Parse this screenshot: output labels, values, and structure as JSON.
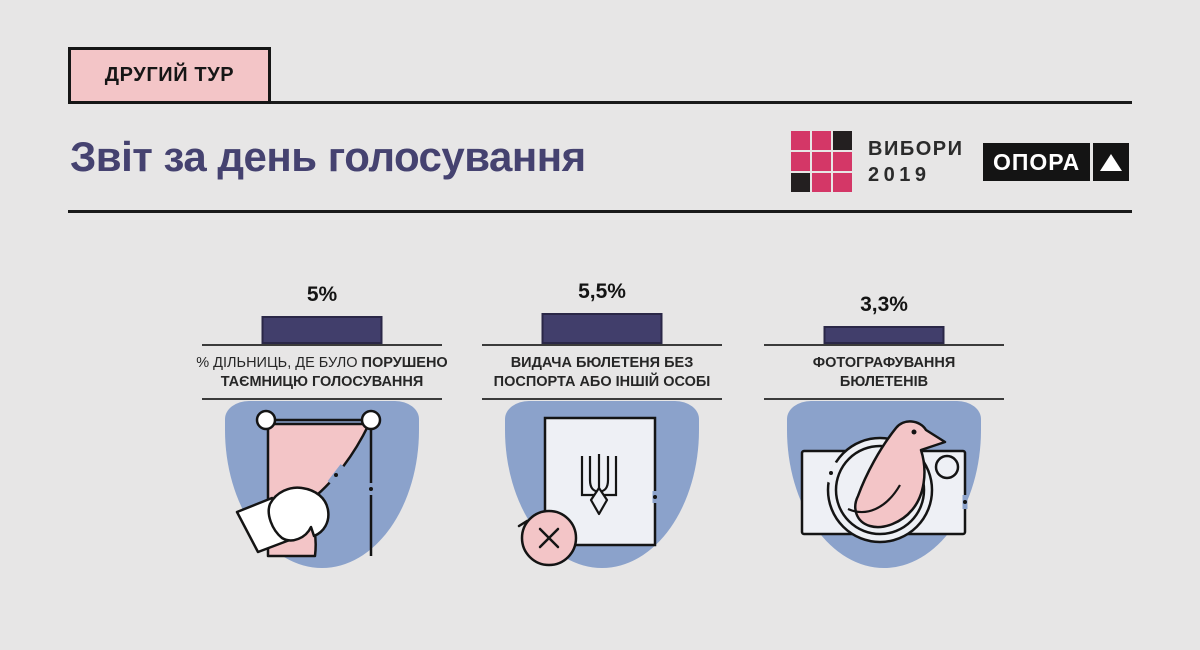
{
  "page": {
    "background": "#e7e6e6",
    "accent_navy": "#413e6b",
    "accent_pink": "#f3c5c7",
    "accent_blue": "#8ba2cb"
  },
  "badge": {
    "label": "ДРУГИЙ ТУР"
  },
  "header": {
    "title": "Звіт за день голосування"
  },
  "logos": {
    "vybory": {
      "title": "ВИБОРИ",
      "year": "2019",
      "grid": [
        "pink",
        "pink",
        "black",
        "pink",
        "pink",
        "pink",
        "black",
        "pink",
        "pink"
      ],
      "pink": "#d43767",
      "black": "#231f20"
    },
    "opora": {
      "label": "ОПОРА",
      "mark": "triangle-up"
    }
  },
  "stats": [
    {
      "value": 5,
      "value_label": "5%",
      "caption_regular": "% ДІЛЬНИЦЬ, ДЕ БУЛО ",
      "caption_bold_line1": "ПОРУШЕНО",
      "caption_bold_line2": "ТАЄМНИЦЮ ГОЛОСУВАННЯ",
      "icon": "voting-booth-curtain-icon"
    },
    {
      "value": 5.5,
      "value_label": "5,5%",
      "caption_bold_line1": "ВИДАЧА БЮЛЕТЕНЯ БЕЗ",
      "caption_bold_line2": "ПОСПОРТА АБО ІНШІЙ ОСОБІ",
      "icon": "ballot-rejected-icon"
    },
    {
      "value": 3.3,
      "value_label": "3,3%",
      "caption_bold_line1": "ФОТОГРАФУВАННЯ",
      "caption_bold_line2": "БЮЛЕТЕНІВ",
      "icon": "camera-bird-icon"
    }
  ],
  "chart_data": {
    "type": "bar",
    "title": "Звіт за день голосування",
    "subtitle": "ДРУГИЙ ТУР",
    "categories": [
      "% дільниць, де було порушено таємницю голосування",
      "Видача бюлетеня без поспорта або іншій особі",
      "Фотографування бюлетенів"
    ],
    "values": [
      5,
      5.5,
      3.3
    ],
    "value_labels": [
      "5%",
      "5,5%",
      "3,3%"
    ],
    "unit": "%",
    "bar_color": "#413e6b",
    "baseline": 0,
    "legend": "none",
    "grid": "off"
  }
}
